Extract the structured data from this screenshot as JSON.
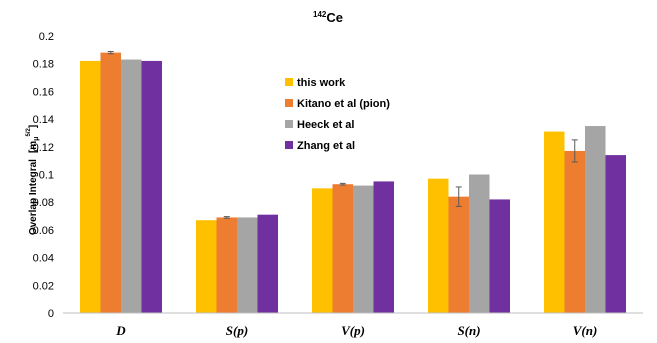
{
  "chart_data": {
    "type": "bar",
    "title_sup": "142",
    "title_main": "Ce",
    "ylabel_main": "Overlap Integral",
    "ylabel_unit": "[m",
    "ylabel_unit_sub": "μ",
    "ylabel_unit_sup": "5/2",
    "ylabel_unit_end": "]",
    "categories": [
      "D",
      "S(p)",
      "V(p)",
      "S(n)",
      "V(n)"
    ],
    "ylim": [
      0,
      0.2
    ],
    "yticks": [
      0,
      0.02,
      0.04,
      0.06,
      0.08,
      0.1,
      0.12,
      0.14,
      0.16,
      0.18,
      0.2
    ],
    "yticklabels": [
      "0",
      "0.02",
      "0.04",
      "0.06",
      "0.08",
      "0.1",
      "0.12",
      "0.14",
      "0.16",
      "0.18",
      "0.2"
    ],
    "grid": false,
    "legend_position": "center",
    "series": [
      {
        "name": "this work",
        "color": "#FFC000",
        "values": [
          0.182,
          0.067,
          0.09,
          0.097,
          0.131
        ]
      },
      {
        "name": "Kitano et al (pion)",
        "color": "#ED7D31",
        "values": [
          0.188,
          0.069,
          0.093,
          0.084,
          0.117
        ],
        "errors": [
          0.0008,
          0.0006,
          0.0006,
          0.007,
          0.008
        ]
      },
      {
        "name": "Heeck et al",
        "color": "#A5A5A5",
        "values": [
          0.183,
          0.069,
          0.092,
          0.1,
          0.135
        ]
      },
      {
        "name": "Zhang et al",
        "color": "#7030A0",
        "values": [
          0.182,
          0.071,
          0.095,
          0.082,
          0.114
        ]
      }
    ]
  }
}
